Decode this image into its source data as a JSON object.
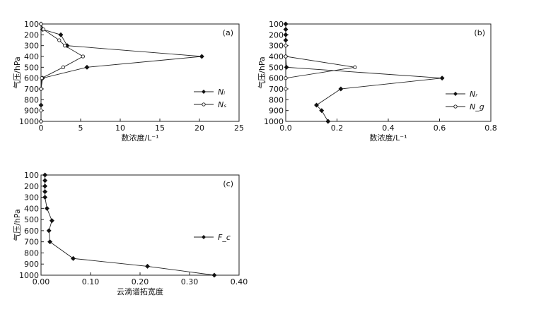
{
  "chart_data": [
    {
      "type": "line",
      "panel_label": "(a)",
      "xlabel": "数浓度/L⁻¹",
      "ylabel": "气压/hPa",
      "xlim": [
        0,
        25
      ],
      "ylim": [
        1000,
        100
      ],
      "y_inverted": true,
      "xticks": [
        0,
        5,
        10,
        15,
        20,
        25
      ],
      "yticks": [
        100,
        200,
        300,
        400,
        500,
        600,
        700,
        800,
        900,
        1000
      ],
      "grid": false,
      "legend_position": "right",
      "series": [
        {
          "name": "Nᵢ",
          "marker": "filled-diamond",
          "points": [
            {
              "x": 0,
              "y": 100
            },
            {
              "x": 0.2,
              "y": 150
            },
            {
              "x": 2.5,
              "y": 200
            },
            {
              "x": 3.3,
              "y": 300
            },
            {
              "x": 20.3,
              "y": 400
            },
            {
              "x": 5.8,
              "y": 500
            },
            {
              "x": 0.2,
              "y": 600
            },
            {
              "x": 0,
              "y": 700
            },
            {
              "x": 0,
              "y": 850
            },
            {
              "x": 0,
              "y": 1000
            }
          ]
        },
        {
          "name": "Nₛ",
          "marker": "open-circle",
          "points": [
            {
              "x": 0,
              "y": 100
            },
            {
              "x": 0.3,
              "y": 150
            },
            {
              "x": 2.3,
              "y": 250
            },
            {
              "x": 3.0,
              "y": 300
            },
            {
              "x": 5.3,
              "y": 400
            },
            {
              "x": 2.8,
              "y": 500
            },
            {
              "x": 0.1,
              "y": 600
            },
            {
              "x": 0,
              "y": 700
            },
            {
              "x": 0,
              "y": 900
            },
            {
              "x": 0,
              "y": 1000
            }
          ]
        }
      ]
    },
    {
      "type": "line",
      "panel_label": "(b)",
      "xlabel": "数浓度/L⁻¹",
      "ylabel": "气压/hPa",
      "xlim": [
        0,
        0.8
      ],
      "ylim": [
        1000,
        100
      ],
      "y_inverted": true,
      "xticks": [
        0.0,
        0.2,
        0.4,
        0.6,
        0.8
      ],
      "yticks": [
        100,
        200,
        300,
        400,
        500,
        600,
        700,
        800,
        900,
        1000
      ],
      "grid": false,
      "legend_position": "right",
      "series": [
        {
          "name": "Nᵣ",
          "marker": "filled-diamond",
          "points": [
            {
              "x": 0,
              "y": 100
            },
            {
              "x": 0,
              "y": 150
            },
            {
              "x": 0,
              "y": 200
            },
            {
              "x": 0,
              "y": 250
            },
            {
              "x": 0,
              "y": 300
            },
            {
              "x": 0,
              "y": 400
            },
            {
              "x": 0.003,
              "y": 500
            },
            {
              "x": 0.61,
              "y": 600
            },
            {
              "x": 0.215,
              "y": 700
            },
            {
              "x": 0.12,
              "y": 850
            },
            {
              "x": 0.14,
              "y": 900
            },
            {
              "x": 0.165,
              "y": 1000
            }
          ]
        },
        {
          "name": "N_g",
          "marker": "open-circle",
          "points": [
            {
              "x": 0,
              "y": 300
            },
            {
              "x": 0,
              "y": 400
            },
            {
              "x": 0.27,
              "y": 500
            },
            {
              "x": 0,
              "y": 600
            },
            {
              "x": 0,
              "y": 700
            }
          ]
        }
      ]
    },
    {
      "type": "line",
      "panel_label": "(c)",
      "xlabel": "云滴谱拓宽度",
      "ylabel": "气压/hPa",
      "xlim": [
        0,
        0.4
      ],
      "ylim": [
        1000,
        100
      ],
      "y_inverted": true,
      "xticks": [
        0.0,
        0.1,
        0.2,
        0.3,
        0.4
      ],
      "yticks": [
        100,
        200,
        300,
        400,
        500,
        600,
        700,
        800,
        900,
        1000
      ],
      "grid": false,
      "legend_position": "right",
      "series": [
        {
          "name": "F_c",
          "marker": "filled-diamond",
          "points": [
            {
              "x": 0.008,
              "y": 100
            },
            {
              "x": 0.008,
              "y": 150
            },
            {
              "x": 0.008,
              "y": 200
            },
            {
              "x": 0.008,
              "y": 250
            },
            {
              "x": 0.008,
              "y": 300
            },
            {
              "x": 0.012,
              "y": 400
            },
            {
              "x": 0.022,
              "y": 510
            },
            {
              "x": 0.016,
              "y": 600
            },
            {
              "x": 0.018,
              "y": 700
            },
            {
              "x": 0.065,
              "y": 850
            },
            {
              "x": 0.215,
              "y": 920
            },
            {
              "x": 0.35,
              "y": 1000
            }
          ]
        }
      ]
    }
  ]
}
